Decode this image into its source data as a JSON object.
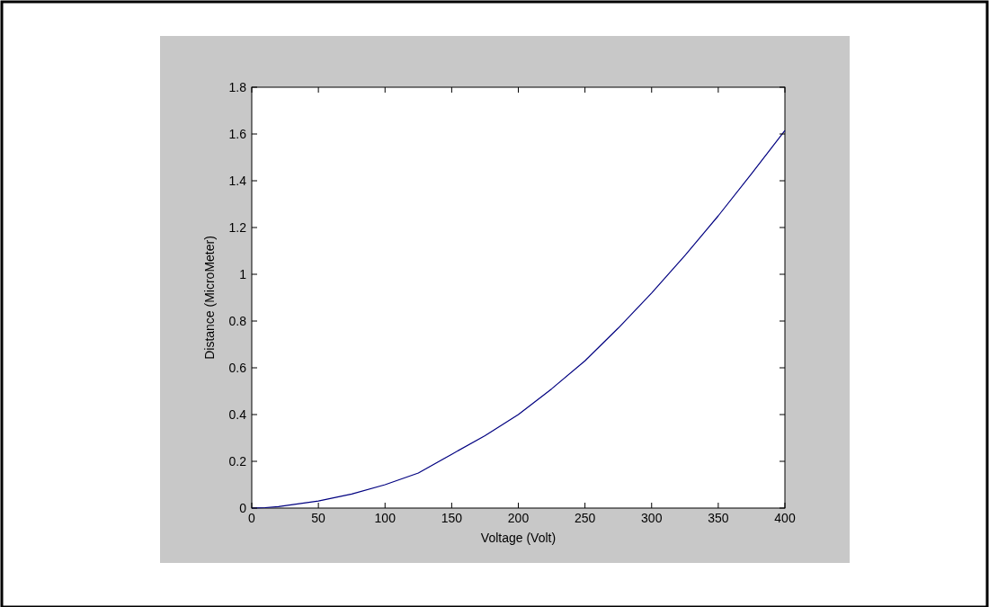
{
  "chart_data": {
    "type": "line",
    "xlabel": "Voltage (Volt)",
    "ylabel": "Distance (MicroMeter)",
    "x": [
      0,
      10,
      20,
      50,
      75,
      100,
      125,
      150,
      175,
      200,
      225,
      250,
      275,
      300,
      325,
      350,
      375,
      400
    ],
    "series": [
      {
        "color": "#000080",
        "values": [
          0,
          0.002,
          0.006,
          0.03,
          0.06,
          0.1,
          0.15,
          0.23,
          0.31,
          0.4,
          0.51,
          0.63,
          0.77,
          0.92,
          1.08,
          1.25,
          1.43,
          1.615
        ]
      }
    ],
    "xlim": [
      0,
      400
    ],
    "ylim": [
      0,
      1.8
    ],
    "xticks": [
      0,
      50,
      100,
      150,
      200,
      250,
      300,
      350,
      400
    ],
    "yticks": [
      0,
      0.2,
      0.4,
      0.6,
      0.8,
      1,
      1.2,
      1.4,
      1.6,
      1.8
    ],
    "grid": false,
    "marker": "none",
    "line_style": "solid"
  }
}
